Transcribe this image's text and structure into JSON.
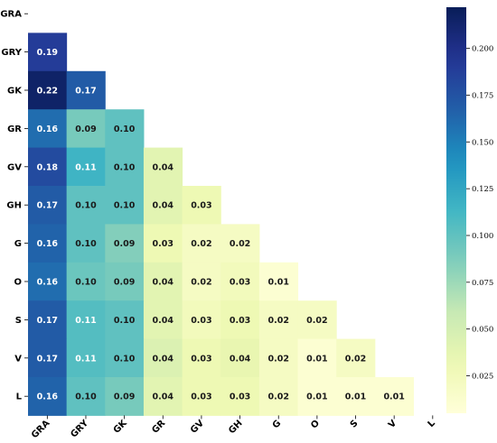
{
  "chart_data": {
    "type": "heatmap",
    "title": "",
    "xlabel": "",
    "ylabel": "",
    "triangle": "lower",
    "x_labels": [
      "GRA",
      "GRY",
      "GK",
      "GR",
      "GV",
      "GH",
      "G",
      "O",
      "S",
      "V",
      "L"
    ],
    "y_labels": [
      "GRA",
      "GRY",
      "GK",
      "GR",
      "GV",
      "GH",
      "G",
      "O",
      "S",
      "V",
      "L"
    ],
    "values": [
      [],
      [
        0.19
      ],
      [
        0.22,
        0.17
      ],
      [
        0.16,
        0.09,
        0.1
      ],
      [
        0.18,
        0.11,
        0.1,
        0.04
      ],
      [
        0.17,
        0.1,
        0.1,
        0.04,
        0.03
      ],
      [
        0.16,
        0.1,
        0.09,
        0.03,
        0.02,
        0.02
      ],
      [
        0.16,
        0.1,
        0.09,
        0.04,
        0.02,
        0.03,
        0.01
      ],
      [
        0.17,
        0.11,
        0.1,
        0.04,
        0.03,
        0.03,
        0.02,
        0.02
      ],
      [
        0.17,
        0.11,
        0.1,
        0.04,
        0.03,
        0.04,
        0.02,
        0.01,
        0.02
      ],
      [
        0.16,
        0.1,
        0.09,
        0.04,
        0.03,
        0.03,
        0.02,
        0.01,
        0.01,
        0.01
      ]
    ],
    "shade_values": [
      [],
      [
        0.19
      ],
      [
        0.215,
        0.17
      ],
      [
        0.16,
        0.09,
        0.1
      ],
      [
        0.18,
        0.115,
        0.1,
        0.04
      ],
      [
        0.17,
        0.1,
        0.1,
        0.04,
        0.03
      ],
      [
        0.165,
        0.1,
        0.085,
        0.03,
        0.02,
        0.02
      ],
      [
        0.16,
        0.095,
        0.09,
        0.04,
        0.02,
        0.025,
        0.01
      ],
      [
        0.17,
        0.105,
        0.1,
        0.04,
        0.025,
        0.03,
        0.02,
        0.02
      ],
      [
        0.17,
        0.105,
        0.1,
        0.045,
        0.03,
        0.035,
        0.02,
        0.01,
        0.02
      ],
      [
        0.165,
        0.1,
        0.09,
        0.04,
        0.03,
        0.03,
        0.02,
        0.01,
        0.01,
        0.01
      ]
    ],
    "colorbar": {
      "colormap": "YlGnBu",
      "vmin": 0.005,
      "vmax": 0.222,
      "ticks": [
        0.025,
        0.05,
        0.075,
        0.1,
        0.125,
        0.15,
        0.175,
        0.2
      ],
      "tick_labels": [
        "0.025",
        "0.050",
        "0.075",
        "0.100",
        "0.125",
        "0.150",
        "0.175",
        "0.200"
      ]
    },
    "value_format": "2 decimals",
    "grid": false,
    "legend": "colorbar-right"
  }
}
